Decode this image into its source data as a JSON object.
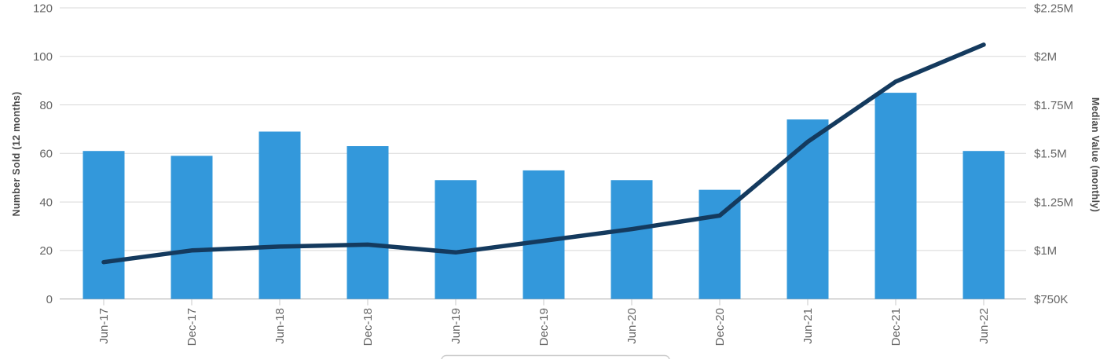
{
  "chart_data": {
    "type": "bar+line dual-axis combo",
    "categories": [
      "Jun-17",
      "Dec-17",
      "Jun-18",
      "Dec-18",
      "Jun-19",
      "Dec-19",
      "Jun-20",
      "Dec-20",
      "Jun-21",
      "Dec-21",
      "Jun-22"
    ],
    "series": [
      {
        "name": "Number Sold (12 months)",
        "type": "bar",
        "axis": "left",
        "values": [
          61,
          59,
          69,
          63,
          49,
          53,
          49,
          45,
          74,
          85,
          61
        ]
      },
      {
        "name": "Median Value (monthly)",
        "type": "line",
        "axis": "right",
        "values_usd_millions": [
          0.94,
          1.0,
          1.02,
          1.03,
          0.99,
          1.05,
          1.11,
          1.18,
          1.56,
          1.87,
          2.06
        ]
      }
    ],
    "title": "",
    "xlabel": "",
    "ylabel_left": "Number Sold (12 months)",
    "ylabel_right": "Median Value (monthly)",
    "y_left_axis": {
      "min": 0,
      "max": 120,
      "tick_labels": [
        "0",
        "20",
        "40",
        "60",
        "80",
        "100",
        "120"
      ]
    },
    "y_right_axis": {
      "min_usd": 750000,
      "max_usd": 2250000,
      "tick_labels": [
        "$750K",
        "$1M",
        "$1.25M",
        "$1.5M",
        "$1.75M",
        "$2M",
        "$2.25M"
      ]
    },
    "grid": "horizontal gridlines on",
    "legend": "legend box cut off at bottom edge (only top border visible)"
  },
  "colors": {
    "bar": "#3398DB",
    "line": "#143A5E",
    "grid": "#D8D8D8",
    "axis_line": "#ABABAB",
    "tick_mark": "#C8C8C8",
    "tick_text": "#666666",
    "axis_title_text": "#4A4A4A",
    "legend_border": "#CCCCCC",
    "background": "#FFFFFF"
  }
}
